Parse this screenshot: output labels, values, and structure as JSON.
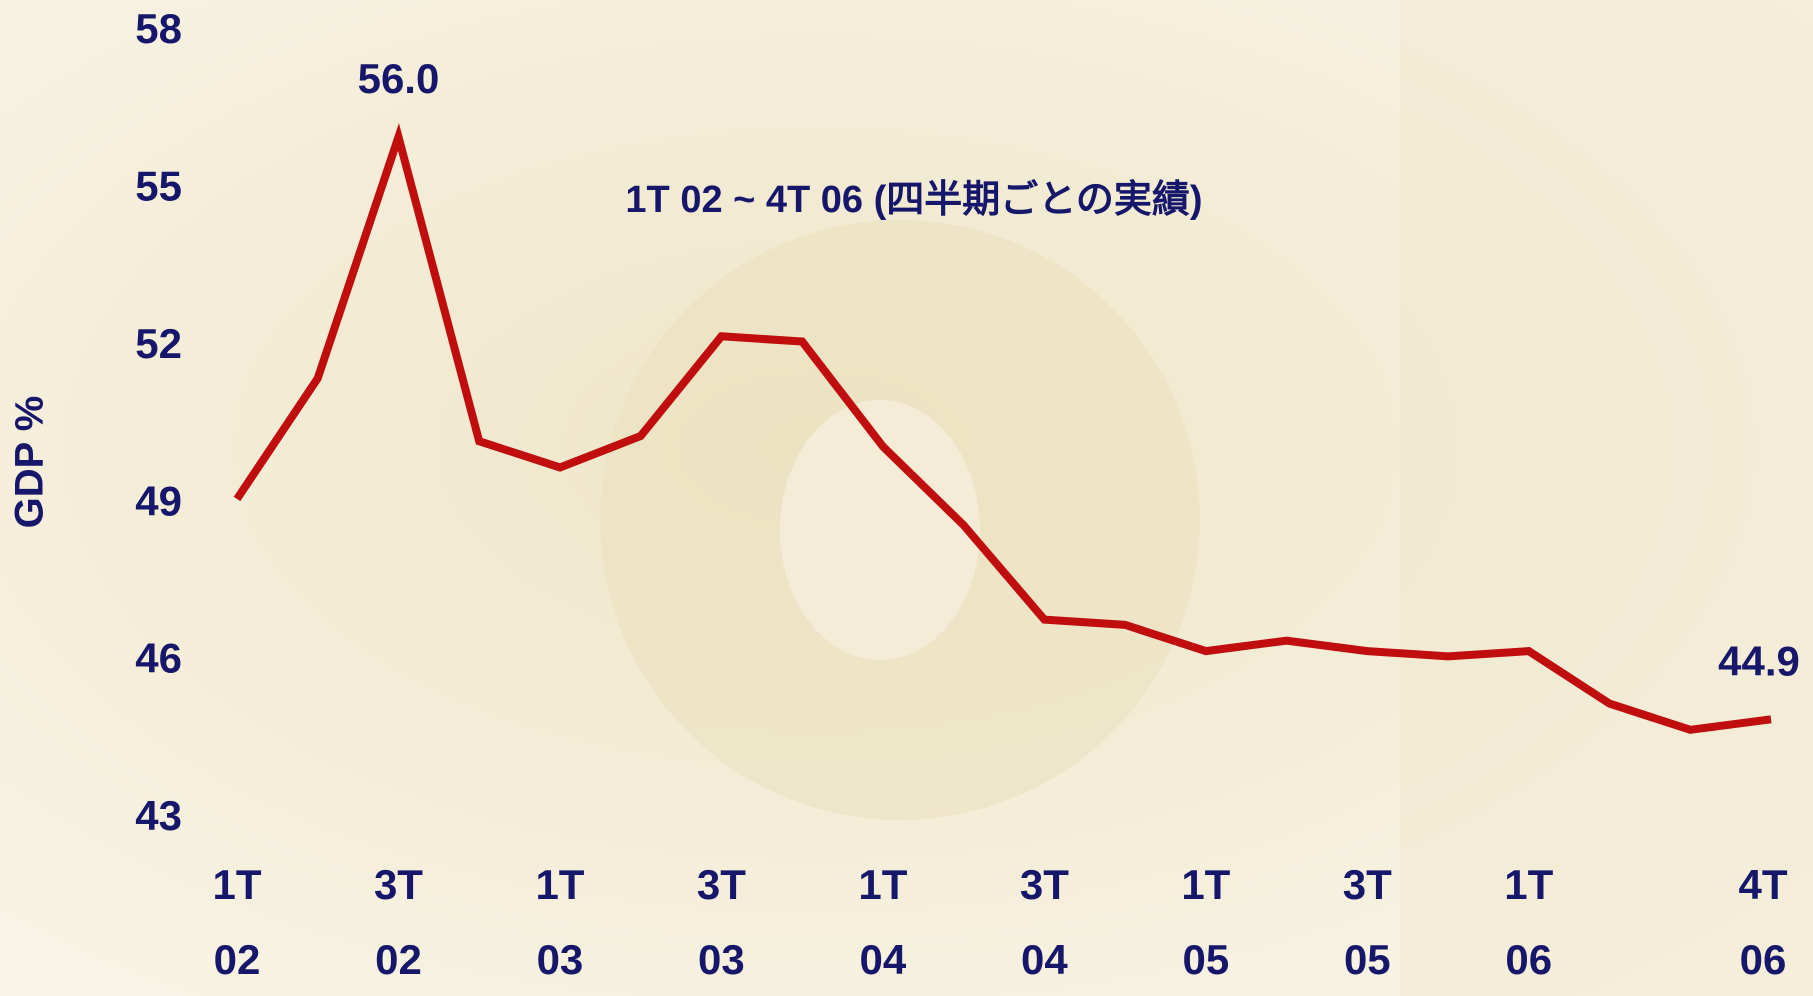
{
  "chart_data": {
    "type": "line",
    "title": "1T 02 ~ 4T 06 (四半期ごとの実績)",
    "y_label": "GDP %",
    "categories": [
      [
        "1T",
        "02"
      ],
      null,
      [
        "3T",
        "02"
      ],
      null,
      [
        "1T",
        "03"
      ],
      null,
      [
        "3T",
        "03"
      ],
      null,
      [
        "1T",
        "04"
      ],
      null,
      [
        "3T",
        "04"
      ],
      null,
      [
        "1T",
        "05"
      ],
      null,
      [
        "3T",
        "05"
      ],
      null,
      [
        "1T",
        "06"
      ],
      null,
      null,
      [
        "4T",
        "06"
      ]
    ],
    "values": [
      49.1,
      51.4,
      56.0,
      50.2,
      49.7,
      50.3,
      52.2,
      52.1,
      50.1,
      48.6,
      46.8,
      46.7,
      46.2,
      46.4,
      46.2,
      46.1,
      46.2,
      45.2,
      44.7,
      44.9
    ],
    "value_labels": [
      null,
      null,
      "56.0",
      null,
      null,
      null,
      null,
      null,
      null,
      null,
      null,
      null,
      null,
      null,
      null,
      null,
      null,
      null,
      null,
      "44.9"
    ],
    "color": "#c00d0d",
    "ylim": [
      43,
      58
    ],
    "yticks": [
      43,
      46,
      49,
      52,
      55,
      58
    ],
    "grid": false
  }
}
